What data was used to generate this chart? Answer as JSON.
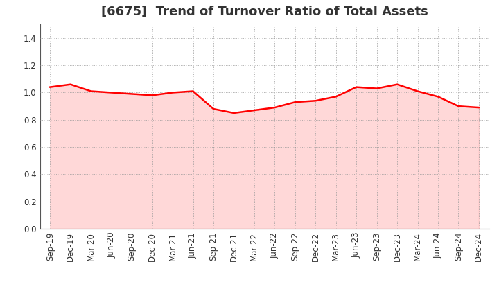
{
  "title": "[6675]  Trend of Turnover Ratio of Total Assets",
  "x_labels": [
    "Sep-19",
    "Dec-19",
    "Mar-20",
    "Jun-20",
    "Sep-20",
    "Dec-20",
    "Mar-21",
    "Jun-21",
    "Sep-21",
    "Dec-21",
    "Mar-22",
    "Jun-22",
    "Sep-22",
    "Dec-22",
    "Mar-23",
    "Jun-23",
    "Sep-23",
    "Dec-23",
    "Mar-24",
    "Jun-24",
    "Sep-24",
    "Dec-24"
  ],
  "y_values": [
    1.04,
    1.06,
    1.01,
    1.0,
    0.99,
    0.98,
    1.0,
    1.01,
    0.88,
    0.85,
    0.87,
    0.89,
    0.93,
    0.94,
    0.97,
    1.04,
    1.03,
    1.06,
    1.01,
    0.97,
    0.9,
    0.89
  ],
  "line_color": "#ff0000",
  "fill_color": "#ffaaaa",
  "fill_alpha": 0.45,
  "line_width": 1.8,
  "ylim": [
    0.0,
    1.5
  ],
  "yticks": [
    0.0,
    0.2,
    0.4,
    0.6,
    0.8,
    1.0,
    1.2,
    1.4
  ],
  "background_color": "#ffffff",
  "grid_color": "#999999",
  "title_fontsize": 13,
  "title_color": "#333333",
  "tick_fontsize": 8.5,
  "tick_color": "#333333"
}
